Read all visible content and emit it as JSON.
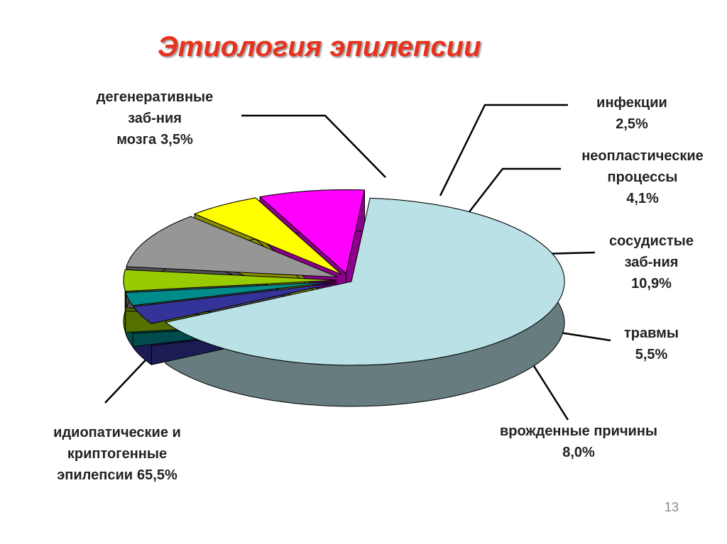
{
  "chart_data": {
    "type": "pie3d",
    "title": "Этиология эпилепсии",
    "categories": [
      "идиопатические и\nкриптогенные\nэпилепсии",
      "дегенеративные\nзаб-ния\nмозга",
      "инфекции",
      "неопластические\nпроцессы",
      "сосудистые\nзаб-ния",
      "травмы",
      "врожденные причины"
    ],
    "values": [
      65.5,
      3.5,
      2.5,
      4.1,
      10.9,
      5.5,
      8.0
    ],
    "value_labels": [
      "65,5%",
      "3,5%",
      "2,5%",
      "4,1%",
      "10,9%",
      "5,5%",
      "8,0%"
    ],
    "colors": [
      "#b9e1e6",
      "#333399",
      "#008b8b",
      "#99cc00",
      "#969696",
      "#ffff00",
      "#ff00ff"
    ]
  },
  "page_number": "13"
}
